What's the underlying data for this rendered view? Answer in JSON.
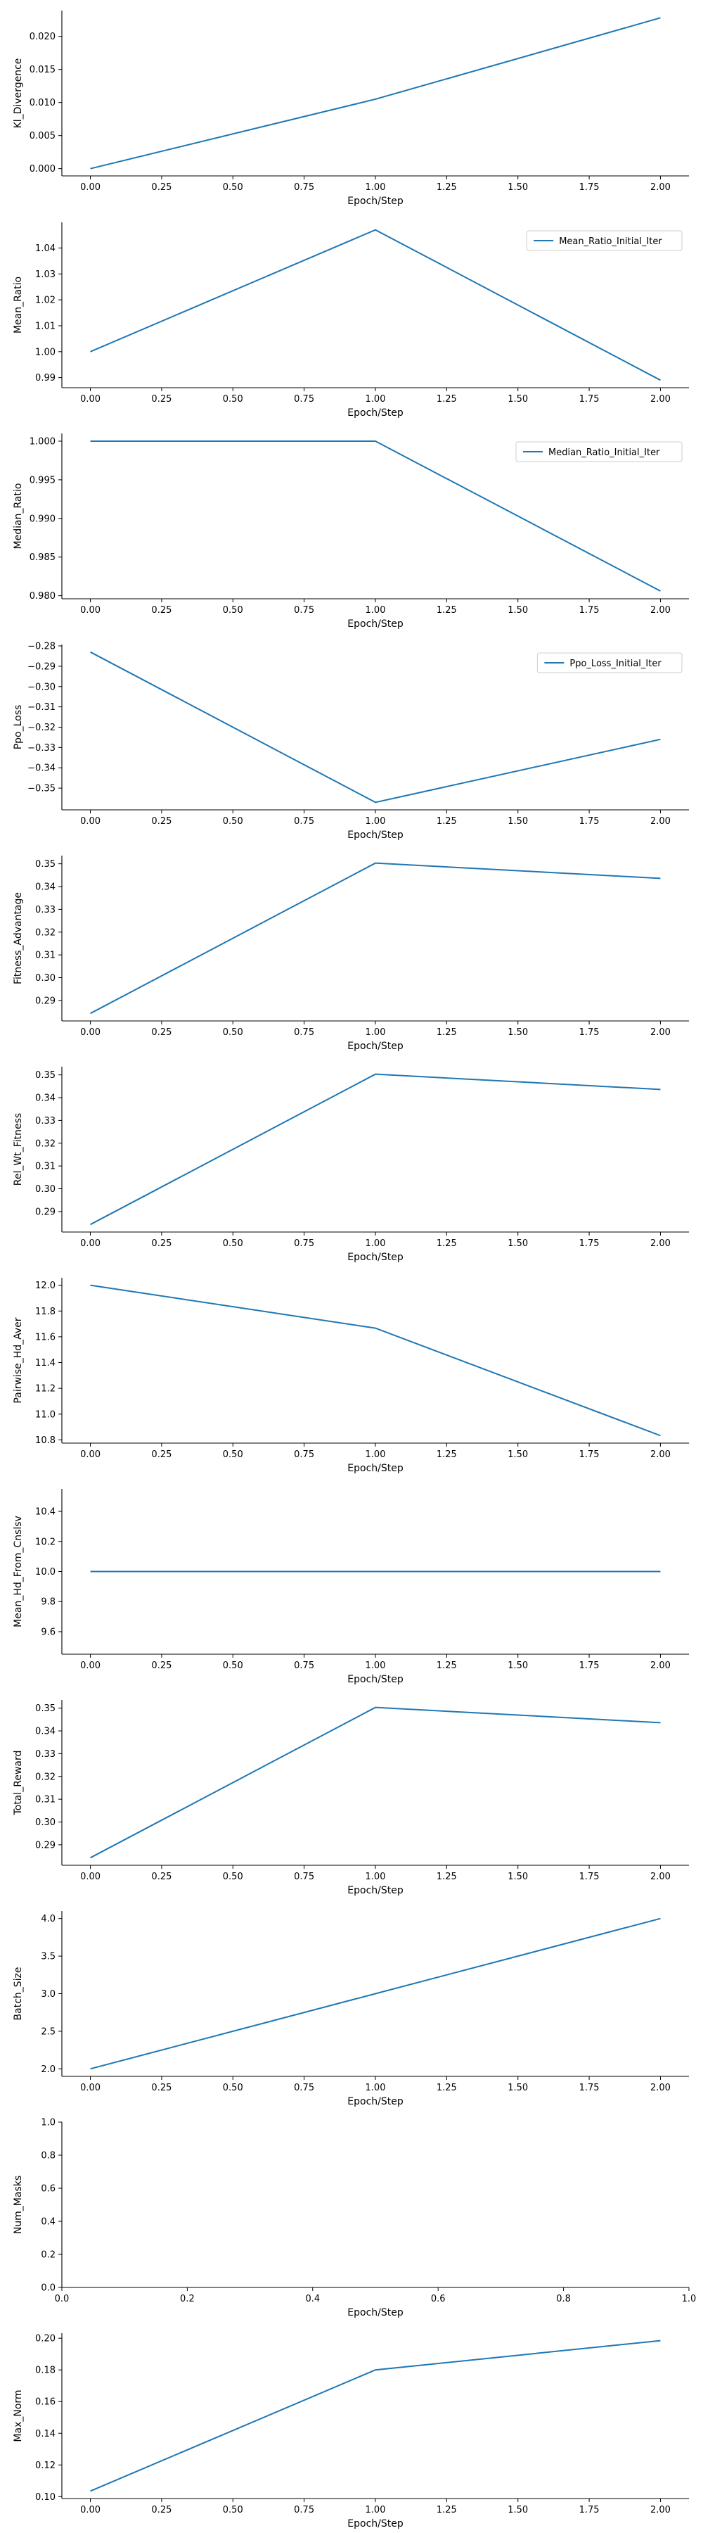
{
  "colors": {
    "line": "#1f77b4",
    "axis": "#000000"
  },
  "chart_data": [
    {
      "type": "line",
      "xlabel": "Epoch/Step",
      "ylabel": "Kl_Divergence",
      "x": [
        0,
        1,
        2
      ],
      "series": [
        {
          "values": [
            0.0,
            0.0105,
            0.0228
          ]
        }
      ],
      "xlim": [
        -0.1,
        2.1
      ],
      "ylim": [
        -0.0011,
        0.0239
      ],
      "xticks": [
        "0.00",
        "0.25",
        "0.50",
        "0.75",
        "1.00",
        "1.25",
        "1.50",
        "1.75",
        "2.00"
      ],
      "yticks": [
        0.0,
        0.005,
        0.01,
        0.015,
        0.02
      ],
      "ytick_labels": [
        "0.000",
        "0.005",
        "0.010",
        "0.015",
        "0.020"
      ]
    },
    {
      "type": "line",
      "xlabel": "Epoch/Step",
      "ylabel": "Mean_Ratio",
      "legend": "top-right",
      "x": [
        0,
        1,
        2
      ],
      "series": [
        {
          "name": "Mean_Ratio_Initial_Iter",
          "values": [
            1.0,
            1.047,
            0.989
          ]
        }
      ],
      "xlim": [
        -0.1,
        2.1
      ],
      "ylim": [
        0.9861,
        1.0499
      ],
      "xticks": [
        "0.00",
        "0.25",
        "0.50",
        "0.75",
        "1.00",
        "1.25",
        "1.50",
        "1.75",
        "2.00"
      ],
      "yticks": [
        0.99,
        1.0,
        1.01,
        1.02,
        1.03,
        1.04
      ],
      "ytick_labels": [
        "0.99",
        "1.00",
        "1.01",
        "1.02",
        "1.03",
        "1.04"
      ]
    },
    {
      "type": "line",
      "xlabel": "Epoch/Step",
      "ylabel": "Median_Ratio",
      "legend": "top-right",
      "x": [
        0,
        1,
        2
      ],
      "series": [
        {
          "name": "Median_Ratio_Initial_Iter",
          "values": [
            1.0,
            1.0,
            0.9806
          ]
        }
      ],
      "xlim": [
        -0.1,
        2.1
      ],
      "ylim": [
        0.9796,
        1.001
      ],
      "xticks": [
        "0.00",
        "0.25",
        "0.50",
        "0.75",
        "1.00",
        "1.25",
        "1.50",
        "1.75",
        "2.00"
      ],
      "yticks": [
        0.98,
        0.985,
        0.99,
        0.995,
        1.0
      ],
      "ytick_labels": [
        "0.980",
        "0.985",
        "0.990",
        "0.995",
        "1.000"
      ]
    },
    {
      "type": "line",
      "xlabel": "Epoch/Step",
      "ylabel": "Ppo_Loss",
      "legend": "top-right",
      "x": [
        0,
        1,
        2
      ],
      "series": [
        {
          "name": "Ppo_Loss_Initial_Iter",
          "values": [
            -0.283,
            -0.357,
            -0.326
          ]
        }
      ],
      "xlim": [
        -0.1,
        2.1
      ],
      "ylim": [
        -0.3607,
        -0.2793
      ],
      "xticks": [
        "0.00",
        "0.25",
        "0.50",
        "0.75",
        "1.00",
        "1.25",
        "1.50",
        "1.75",
        "2.00"
      ],
      "yticks": [
        -0.35,
        -0.34,
        -0.33,
        -0.32,
        -0.31,
        -0.3,
        -0.29,
        -0.28
      ],
      "ytick_labels": [
        "−0.35",
        "−0.34",
        "−0.33",
        "−0.32",
        "−0.31",
        "−0.30",
        "−0.29",
        "−0.28"
      ]
    },
    {
      "type": "line",
      "xlabel": "Epoch/Step",
      "ylabel": "Fitness_Advantage",
      "x": [
        0,
        1,
        2
      ],
      "series": [
        {
          "values": [
            0.2843,
            0.3503,
            0.3436
          ]
        }
      ],
      "xlim": [
        -0.1,
        2.1
      ],
      "ylim": [
        0.281,
        0.3536
      ],
      "xticks": [
        "0.00",
        "0.25",
        "0.50",
        "0.75",
        "1.00",
        "1.25",
        "1.50",
        "1.75",
        "2.00"
      ],
      "yticks": [
        0.29,
        0.3,
        0.31,
        0.32,
        0.33,
        0.34,
        0.35
      ],
      "ytick_labels": [
        "0.29",
        "0.30",
        "0.31",
        "0.32",
        "0.33",
        "0.34",
        "0.35"
      ]
    },
    {
      "type": "line",
      "xlabel": "Epoch/Step",
      "ylabel": "Rel_Wt_Fitness",
      "x": [
        0,
        1,
        2
      ],
      "series": [
        {
          "values": [
            0.2843,
            0.3503,
            0.3436
          ]
        }
      ],
      "xlim": [
        -0.1,
        2.1
      ],
      "ylim": [
        0.281,
        0.3536
      ],
      "xticks": [
        "0.00",
        "0.25",
        "0.50",
        "0.75",
        "1.00",
        "1.25",
        "1.50",
        "1.75",
        "2.00"
      ],
      "yticks": [
        0.29,
        0.3,
        0.31,
        0.32,
        0.33,
        0.34,
        0.35
      ],
      "ytick_labels": [
        "0.29",
        "0.30",
        "0.31",
        "0.32",
        "0.33",
        "0.34",
        "0.35"
      ]
    },
    {
      "type": "line",
      "xlabel": "Epoch/Step",
      "ylabel": "Pairwise_Hd_Aver",
      "x": [
        0,
        1,
        2
      ],
      "series": [
        {
          "values": [
            12.0,
            11.667,
            10.833
          ]
        }
      ],
      "xlim": [
        -0.1,
        2.1
      ],
      "ylim": [
        10.775,
        12.058
      ],
      "xticks": [
        "0.00",
        "0.25",
        "0.50",
        "0.75",
        "1.00",
        "1.25",
        "1.50",
        "1.75",
        "2.00"
      ],
      "yticks": [
        10.8,
        11.0,
        11.2,
        11.4,
        11.6,
        11.8,
        12.0
      ],
      "ytick_labels": [
        "10.8",
        "11.0",
        "11.2",
        "11.4",
        "11.6",
        "11.8",
        "12.0"
      ]
    },
    {
      "type": "line",
      "xlabel": "Epoch/Step",
      "ylabel": "Mean_Hd_From_Cnslsv",
      "x": [
        0,
        1,
        2
      ],
      "series": [
        {
          "values": [
            10.0,
            10.0,
            10.0
          ]
        }
      ],
      "xlim": [
        -0.1,
        2.1
      ],
      "ylim": [
        9.45,
        10.55
      ],
      "xticks": [
        "0.00",
        "0.25",
        "0.50",
        "0.75",
        "1.00",
        "1.25",
        "1.50",
        "1.75",
        "2.00"
      ],
      "yticks": [
        9.6,
        9.8,
        10.0,
        10.2,
        10.4
      ],
      "ytick_labels": [
        "9.6",
        "9.8",
        "10.0",
        "10.2",
        "10.4"
      ]
    },
    {
      "type": "line",
      "xlabel": "Epoch/Step",
      "ylabel": "Total_Reward",
      "x": [
        0,
        1,
        2
      ],
      "series": [
        {
          "values": [
            0.2843,
            0.3503,
            0.3436
          ]
        }
      ],
      "xlim": [
        -0.1,
        2.1
      ],
      "ylim": [
        0.281,
        0.3536
      ],
      "xticks": [
        "0.00",
        "0.25",
        "0.50",
        "0.75",
        "1.00",
        "1.25",
        "1.50",
        "1.75",
        "2.00"
      ],
      "yticks": [
        0.29,
        0.3,
        0.31,
        0.32,
        0.33,
        0.34,
        0.35
      ],
      "ytick_labels": [
        "0.29",
        "0.30",
        "0.31",
        "0.32",
        "0.33",
        "0.34",
        "0.35"
      ]
    },
    {
      "type": "line",
      "xlabel": "Epoch/Step",
      "ylabel": "Batch_Size",
      "x": [
        0,
        1,
        2
      ],
      "series": [
        {
          "values": [
            2.0,
            3.0,
            4.0
          ]
        }
      ],
      "xlim": [
        -0.1,
        2.1
      ],
      "ylim": [
        1.9,
        4.1
      ],
      "xticks": [
        "0.00",
        "0.25",
        "0.50",
        "0.75",
        "1.00",
        "1.25",
        "1.50",
        "1.75",
        "2.00"
      ],
      "yticks": [
        2.0,
        2.5,
        3.0,
        3.5,
        4.0
      ],
      "ytick_labels": [
        "2.0",
        "2.5",
        "3.0",
        "3.5",
        "4.0"
      ]
    },
    {
      "type": "line",
      "xlabel": "Epoch/Step",
      "ylabel": "Num_Masks",
      "x": [],
      "series": [
        {
          "values": []
        }
      ],
      "xlim": [
        0,
        1
      ],
      "ylim": [
        0,
        1
      ],
      "xticks": [
        "0.0",
        "0.2",
        "0.4",
        "0.6",
        "0.8",
        "1.0"
      ],
      "yticks": [
        0.0,
        0.2,
        0.4,
        0.6,
        0.8,
        1.0
      ],
      "ytick_labels": [
        "0.0",
        "0.2",
        "0.4",
        "0.6",
        "0.8",
        "1.0"
      ]
    },
    {
      "type": "line",
      "xlabel": "Epoch/Step",
      "ylabel": "Max_Norm",
      "x": [
        0,
        1,
        2
      ],
      "series": [
        {
          "values": [
            0.1035,
            0.18,
            0.1985
          ]
        }
      ],
      "xlim": [
        -0.1,
        2.1
      ],
      "ylim": [
        0.0988,
        0.2032
      ],
      "xticks": [
        "0.00",
        "0.25",
        "0.50",
        "0.75",
        "1.00",
        "1.25",
        "1.50",
        "1.75",
        "2.00"
      ],
      "yticks": [
        0.1,
        0.12,
        0.14,
        0.16,
        0.18,
        0.2
      ],
      "ytick_labels": [
        "0.10",
        "0.12",
        "0.14",
        "0.16",
        "0.18",
        "0.20"
      ]
    }
  ]
}
